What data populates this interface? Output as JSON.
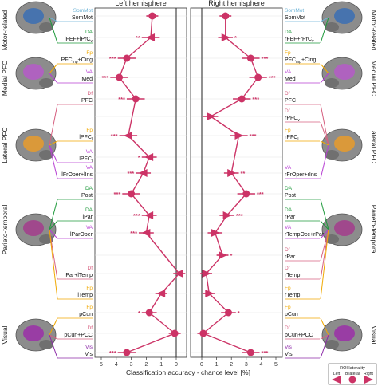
{
  "chart_data": {
    "type": "scatter",
    "panels": [
      {
        "title": "Left hemisphere",
        "direction": "reversed"
      },
      {
        "title": "Right hemisphere",
        "direction": "normal"
      }
    ],
    "xlabel": "Classification accuracy - chance level [%]",
    "xlim": [
      -5,
      5
    ],
    "xticks": [
      5,
      4,
      3,
      2,
      1,
      0,
      1,
      2,
      3,
      4,
      5
    ],
    "x_tick_values": [
      5,
      4,
      3,
      2,
      1,
      0,
      -1,
      -2,
      -3,
      -4,
      -5
    ],
    "regions": [
      {
        "name": "Motor-related",
        "brain_color": "#3b6fb4"
      },
      {
        "name": "Medial PFC",
        "brain_color": "#b55ac8"
      },
      {
        "name": "Lateral PFC",
        "brain_color": "#e89b2b"
      },
      {
        "name": "Parieto-temporal",
        "brain_color": "#a33c8c"
      },
      {
        "name": "Visual",
        "brain_color": "#9b2fa8"
      }
    ],
    "rows": [
      {
        "net": "SomMot",
        "left_label": "SomMot",
        "left_sub": "",
        "left": 1.6,
        "left_err": 0.4,
        "left_stars": "",
        "left_lat": "bilateral",
        "right_label": "SomMot",
        "right_sub": "",
        "right": 1.6,
        "right_err": 0.4,
        "right_stars": "",
        "right_lat": "bilateral"
      },
      {
        "net": "DA",
        "left_label": "lFEF+lPrC",
        "left_sub": "v",
        "left": 1.7,
        "left_err": 0.6,
        "left_stars": "**",
        "left_lat": "left",
        "right_label": "rFEF+rPrC",
        "right_sub": "v",
        "right": 1.6,
        "right_err": 0.5,
        "right_stars": "*",
        "right_lat": "right"
      },
      {
        "net": "Fp",
        "left_label": "PFC",
        "left_sub": "mp",
        "left_tail": "+Cing",
        "left": 3.3,
        "left_err": 0.6,
        "left_stars": "***",
        "left_lat": "bilateral",
        "right_label": "PFC",
        "right_sub": "mp",
        "right_tail": "+Cing",
        "right": 3.3,
        "right_err": 0.6,
        "right_stars": "***",
        "right_lat": "bilateral"
      },
      {
        "net": "VA",
        "left_label": "Med",
        "left_sub": "",
        "left": 3.8,
        "left_err": 0.6,
        "left_stars": "***",
        "left_lat": "bilateral",
        "right_label": "Med",
        "right_sub": "",
        "right": 3.8,
        "right_err": 0.6,
        "right_stars": "***",
        "right_lat": "bilateral"
      },
      {
        "net": "Df",
        "left_label": "PFC",
        "left_sub": "",
        "left": 2.7,
        "left_err": 0.6,
        "left_stars": "***",
        "left_lat": "bilateral",
        "right_label": "PFC",
        "right_sub": "",
        "right": 2.7,
        "right_err": 0.6,
        "right_stars": "***",
        "right_lat": "bilateral"
      },
      {
        "net": "Df",
        "left_label": "",
        "left_sub": "",
        "left": null,
        "left_err": null,
        "left_stars": "",
        "left_lat": "",
        "right_label": "rPFC",
        "right_sub": "v",
        "right": 0.6,
        "right_err": 0.5,
        "right_stars": "",
        "right_lat": "right"
      },
      {
        "net": "Fp",
        "left_label": "lPFC",
        "left_sub": "l",
        "left": 3.2,
        "left_err": 0.6,
        "left_stars": "***",
        "left_lat": "left",
        "right_label": "rPFC",
        "right_sub": "l",
        "right": 2.5,
        "right_err": 0.6,
        "right_stars": "***",
        "right_lat": "right"
      },
      {
        "net": "VA",
        "left_label": "lPFC",
        "left_sub": "l",
        "left": 1.8,
        "left_err": 0.5,
        "left_stars": "*",
        "left_lat": "left",
        "right_label": "",
        "right_sub": "",
        "right": null,
        "right_err": null,
        "right_stars": "",
        "right_lat": ""
      },
      {
        "net": "VA",
        "left_label": "lFrOper+lIns",
        "left_sub": "",
        "left": 2.2,
        "left_err": 0.5,
        "left_stars": "***",
        "left_lat": "left",
        "right_label": "rFrOper+rIns",
        "right_sub": "",
        "right": 2.0,
        "right_err": 0.5,
        "right_stars": "**",
        "right_lat": "right"
      },
      {
        "net": "DA",
        "left_label": "Post",
        "left_sub": "",
        "left": 3.0,
        "left_err": 0.6,
        "left_stars": "***",
        "left_lat": "bilateral",
        "right_label": "Post",
        "right_sub": "",
        "right": 3.0,
        "right_err": 0.6,
        "right_stars": "***",
        "right_lat": "bilateral"
      },
      {
        "net": "DA",
        "left_label": "lPar",
        "left_sub": "",
        "left": 1.8,
        "left_err": 0.5,
        "left_stars": "***",
        "left_lat": "left",
        "right_label": "rPar",
        "right_sub": "",
        "right": 1.7,
        "right_err": 0.5,
        "right_stars": "***",
        "right_lat": "right"
      },
      {
        "net": "VA",
        "left_label": "lParOper",
        "left_sub": "",
        "left": 2.0,
        "left_err": 0.5,
        "left_stars": "***",
        "left_lat": "left",
        "right_label": "rTempOcc+rPar",
        "right_sub": "",
        "right": 0.9,
        "right_err": 0.5,
        "right_stars": "",
        "right_lat": "right"
      },
      {
        "net": "Df",
        "left_label": "",
        "left_sub": "",
        "left": null,
        "left_err": null,
        "left_stars": "",
        "left_lat": "",
        "right_label": "rPar",
        "right_sub": "",
        "right": 1.4,
        "right_err": 0.4,
        "right_stars": "*",
        "right_lat": "right"
      },
      {
        "net": "Df",
        "left_label": "lPar+lTemp",
        "left_sub": "",
        "left": -0.2,
        "left_err": 0.4,
        "left_stars": "",
        "left_lat": "left",
        "right_label": "rTemp",
        "right_sub": "",
        "right": 0.3,
        "right_err": 0.4,
        "right_stars": "",
        "right_lat": "right"
      },
      {
        "net": "Fp",
        "left_label": "lTemp",
        "left_sub": "",
        "left": 1.0,
        "left_err": 0.4,
        "left_stars": "",
        "left_lat": "left",
        "right_label": "rTemp",
        "right_sub": "",
        "right": 0.5,
        "right_err": 0.4,
        "right_stars": "",
        "right_lat": "right"
      },
      {
        "net": "Fp",
        "left_label": "pCun",
        "left_sub": "",
        "left": 1.8,
        "left_err": 0.5,
        "left_stars": "*",
        "left_lat": "bilateral",
        "right_label": "pCun",
        "right_sub": "",
        "right": 1.8,
        "right_err": 0.5,
        "right_stars": "*",
        "right_lat": "bilateral"
      },
      {
        "net": "Df",
        "left_label": "pCun+PCC",
        "left_sub": "",
        "left": 0.1,
        "left_err": 0.4,
        "left_stars": "",
        "left_lat": "bilateral",
        "right_label": "pCun+PCC",
        "right_sub": "",
        "right": 0.1,
        "right_err": 0.4,
        "right_stars": "",
        "right_lat": "bilateral"
      },
      {
        "net": "Vis",
        "left_label": "Vis",
        "left_sub": "",
        "left": 3.3,
        "left_err": 0.6,
        "left_stars": "***",
        "left_lat": "bilateral",
        "right_label": "Vis",
        "right_sub": "",
        "right": 3.3,
        "right_err": 0.6,
        "right_stars": "***",
        "right_lat": "bilateral"
      }
    ],
    "network_colors": {
      "SomMot": "#6db3d6",
      "DA": "#1f9a3c",
      "Fp": "#f0a800",
      "VA": "#b73fd3",
      "Df": "#d66080",
      "Vis": "#8c2aa8"
    },
    "series_color": "#cc3366",
    "legend": {
      "title": "ROI laterality",
      "items": [
        "Left",
        "Bilateral",
        "Right"
      ],
      "placement": "bottom-right"
    }
  }
}
